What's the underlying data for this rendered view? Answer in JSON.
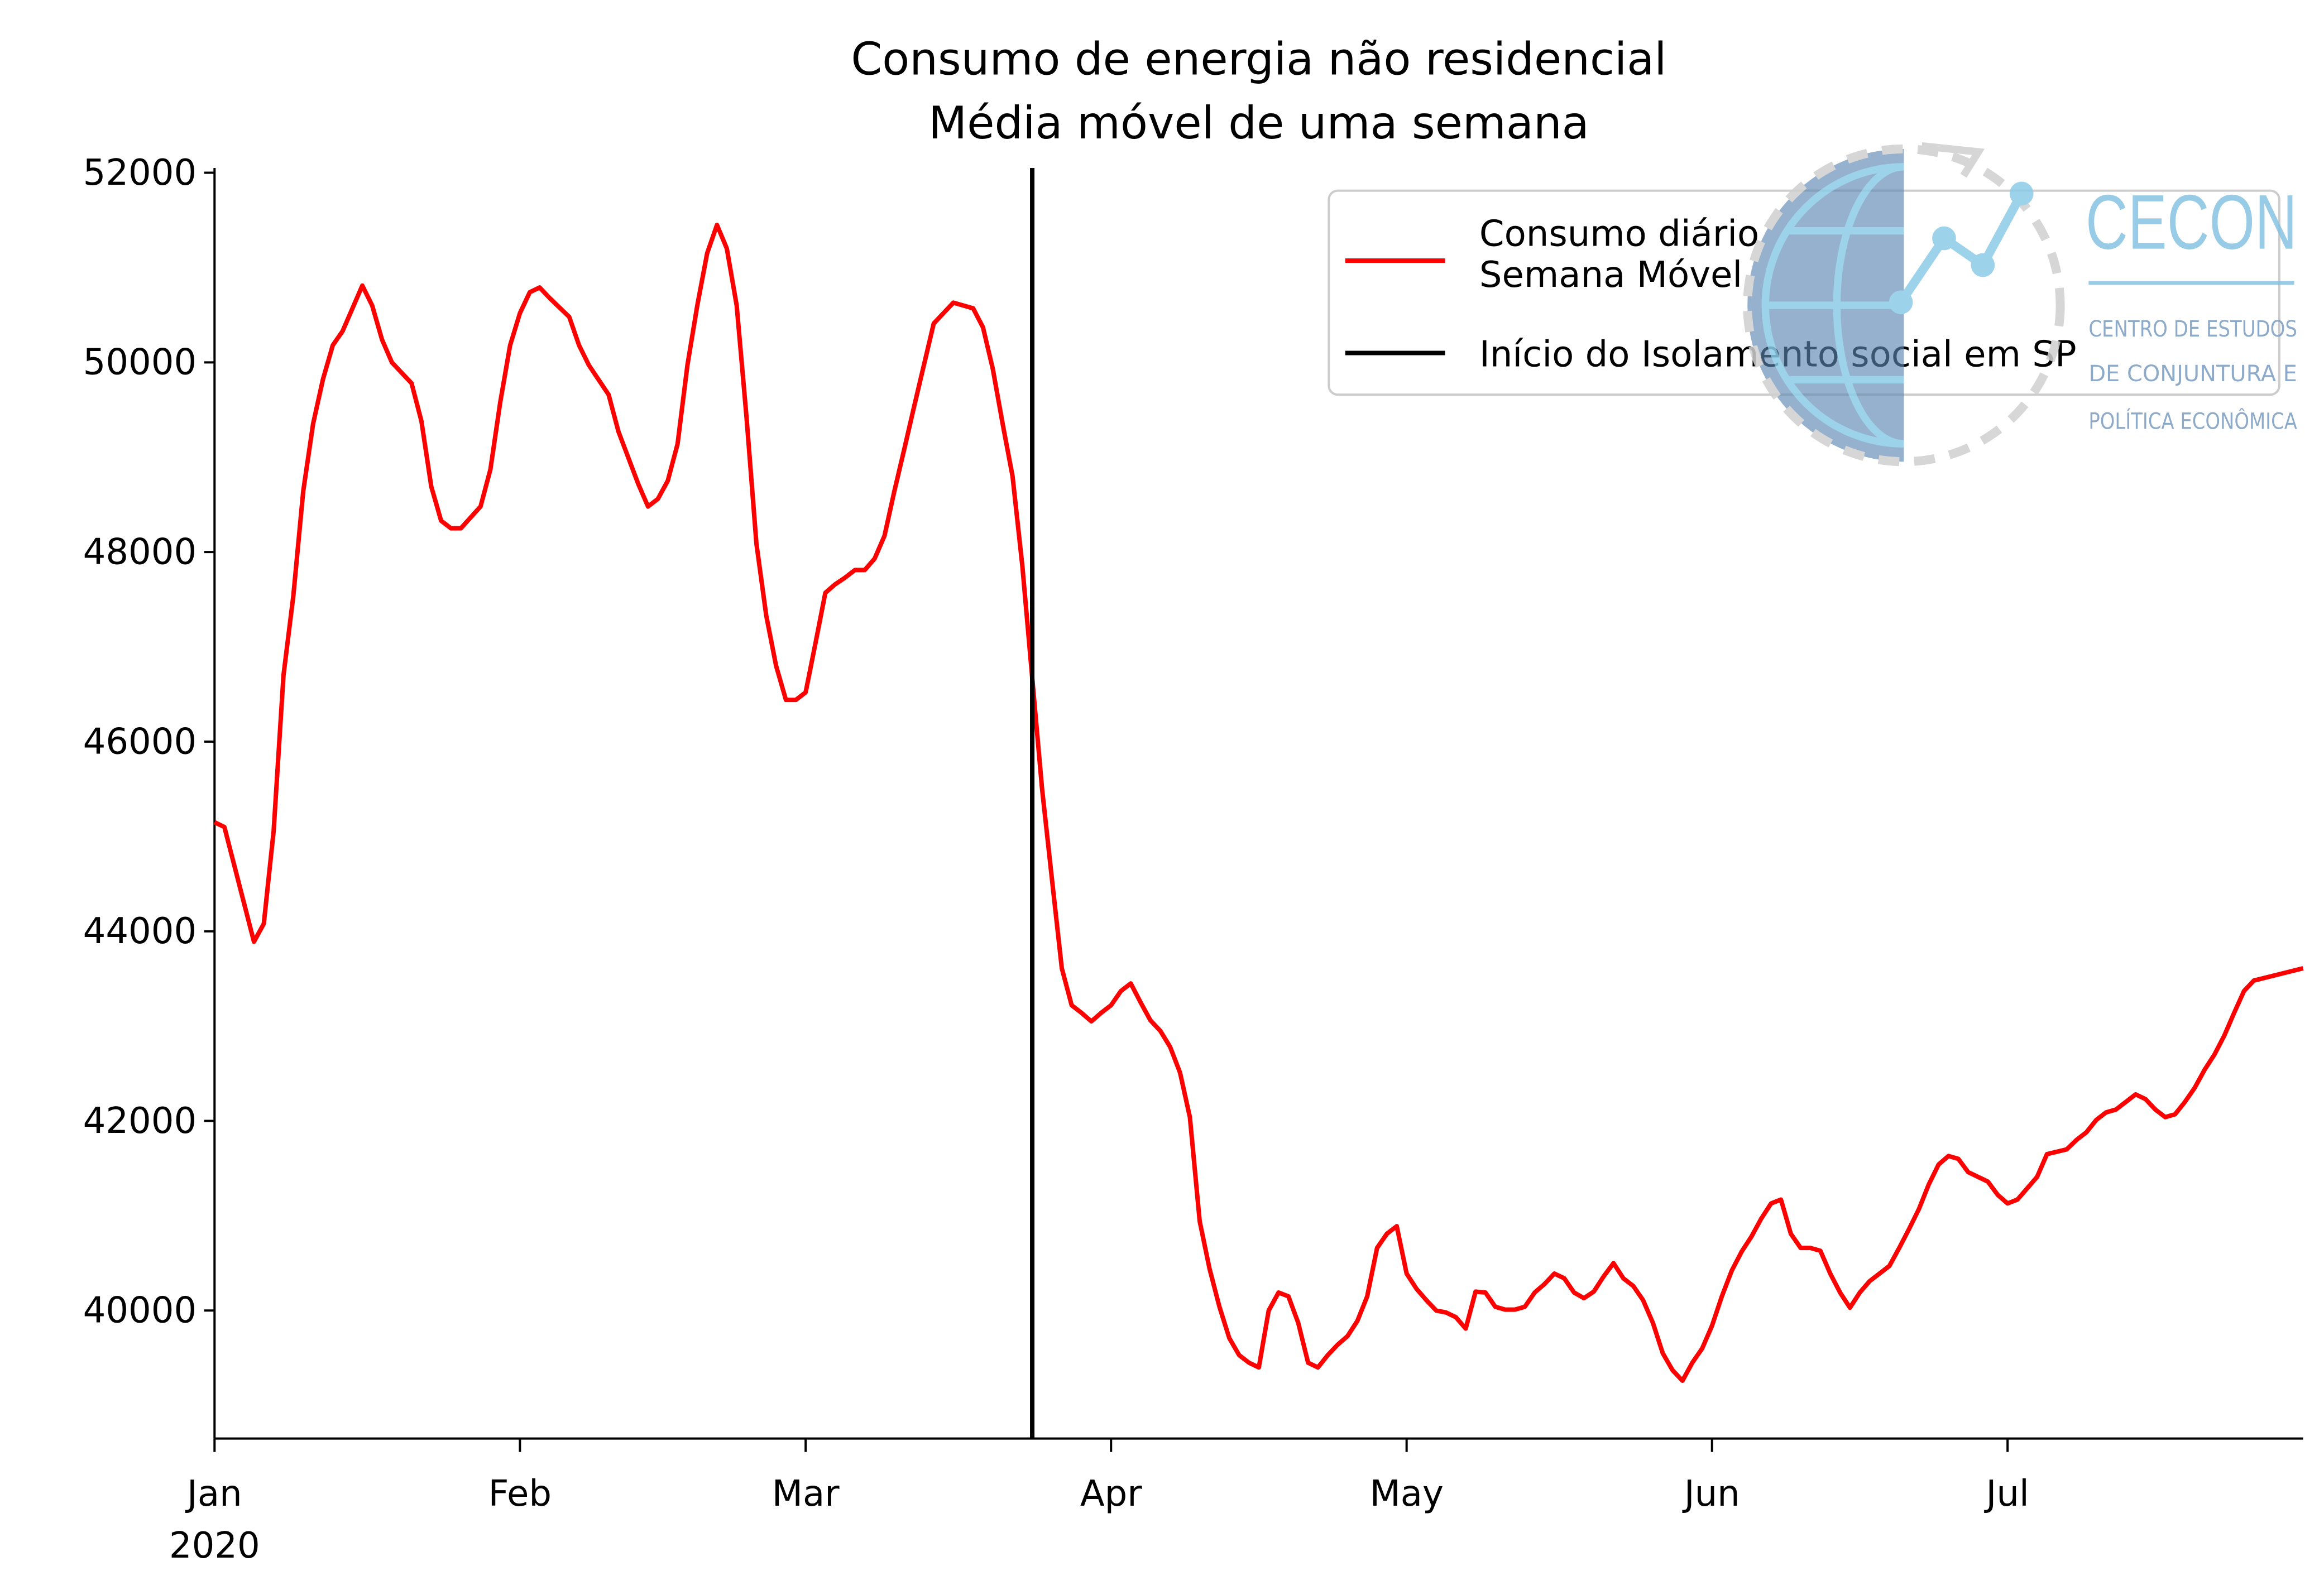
{
  "chart_data": {
    "type": "line",
    "title": "Consumo de energia não residencial",
    "subtitle": "Média móvel de uma semana",
    "xlim": [
      0,
      212
    ],
    "xticks": [
      {
        "value": 0,
        "label": "Jan"
      },
      {
        "value": 31,
        "label": "Feb"
      },
      {
        "value": 60,
        "label": "Mar"
      },
      {
        "value": 91,
        "label": "Apr"
      },
      {
        "value": 121,
        "label": "May"
      },
      {
        "value": 152,
        "label": "Jun"
      },
      {
        "value": 182,
        "label": "Jul"
      }
    ],
    "year_label": "2020",
    "ylim": [
      38650,
      52050
    ],
    "yticks": [
      40000,
      42000,
      44000,
      46000,
      48000,
      50000,
      52000
    ],
    "x": [
      0,
      1,
      4,
      5,
      6,
      7,
      8,
      9,
      10,
      11,
      12,
      13,
      15,
      16,
      17,
      18,
      20,
      21,
      22,
      23,
      24,
      25,
      27,
      28,
      29,
      30,
      31,
      32,
      33,
      34,
      36,
      37,
      38,
      40,
      41,
      43,
      44,
      45,
      46,
      47,
      48,
      49,
      50,
      51,
      52,
      53,
      54,
      55,
      56,
      57,
      58,
      59,
      60,
      61,
      62,
      63,
      64,
      65,
      66,
      67,
      68,
      69,
      70,
      71,
      72,
      73,
      75,
      77,
      78,
      79,
      80,
      81,
      82,
      83,
      84,
      85,
      86,
      87,
      88,
      89,
      90,
      91,
      92,
      93,
      94,
      95,
      96,
      97,
      98,
      99,
      100,
      101,
      102,
      103,
      104,
      105,
      106,
      107,
      108,
      109,
      110,
      111,
      112,
      113,
      114,
      115,
      116,
      117,
      118,
      119,
      120,
      121,
      122,
      123,
      124,
      125,
      126,
      127,
      128,
      129,
      130,
      131,
      132,
      133,
      134,
      135,
      136,
      137,
      138,
      139,
      140,
      141,
      142,
      143,
      144,
      145,
      146,
      147,
      148,
      149,
      150,
      151,
      152,
      153,
      154,
      155,
      156,
      157,
      158,
      159,
      160,
      161,
      162,
      163,
      164,
      165,
      166,
      167,
      168,
      169,
      170,
      171,
      172,
      173,
      174,
      175,
      176,
      177,
      178,
      179,
      180,
      181,
      182,
      183,
      185,
      186,
      188,
      189,
      190,
      191,
      192,
      193,
      194,
      195,
      196,
      197,
      198,
      199,
      200,
      201,
      202,
      203,
      204,
      205,
      206,
      207,
      212
    ],
    "series": [
      {
        "name": "Consumo diário\nSemana Móvel",
        "color": "#ff0000",
        "values": [
          45150,
          45100,
          43890,
          44080,
          45060,
          46700,
          47540,
          48640,
          49350,
          49820,
          50180,
          50330,
          50810,
          50600,
          50240,
          50000,
          49780,
          49380,
          48690,
          48330,
          48250,
          48250,
          48480,
          48870,
          49580,
          50180,
          50520,
          50740,
          50790,
          50680,
          50480,
          50180,
          49970,
          49660,
          49270,
          48720,
          48480,
          48560,
          48750,
          49140,
          49970,
          50600,
          51150,
          51450,
          51200,
          50600,
          49420,
          48090,
          47330,
          46800,
          46440,
          46440,
          46520,
          47040,
          47570,
          47660,
          47730,
          47810,
          47810,
          47930,
          48170,
          48640,
          49080,
          49530,
          49970,
          50410,
          50630,
          50570,
          50370,
          49930,
          49350,
          48800,
          47850,
          46670,
          45500,
          44550,
          43610,
          43220,
          43140,
          43050,
          43140,
          43220,
          43370,
          43450,
          43250,
          43060,
          42950,
          42780,
          42510,
          42040,
          40940,
          40440,
          40040,
          39710,
          39530,
          39450,
          39400,
          40000,
          40190,
          40150,
          39870,
          39450,
          39400,
          39530,
          39640,
          39730,
          39890,
          40150,
          40660,
          40810,
          40890,
          40390,
          40230,
          40110,
          40000,
          39980,
          39930,
          39810,
          40200,
          40190,
          40040,
          40010,
          40010,
          40040,
          40190,
          40280,
          40390,
          40340,
          40190,
          40130,
          40200,
          40360,
          40500,
          40340,
          40260,
          40110,
          39870,
          39550,
          39370,
          39260,
          39450,
          39600,
          39840,
          40150,
          40420,
          40620,
          40780,
          40970,
          41130,
          41170,
          40810,
          40660,
          40660,
          40630,
          40390,
          40190,
          40030,
          40190,
          40310,
          40390,
          40470,
          40660,
          40860,
          41070,
          41330,
          41540,
          41630,
          41600,
          41460,
          41410,
          41360,
          41220,
          41130,
          41170,
          41410,
          41650,
          41700,
          41800,
          41880,
          42010,
          42090,
          42120,
          42200,
          42280,
          42230,
          42120,
          42040,
          42070,
          42200,
          42350,
          42540,
          42700,
          42900,
          43140,
          43370,
          43480,
          43610
        ]
      }
    ],
    "vline": {
      "name": "Início do Isolamento social em SP",
      "color": "#000000",
      "x": 83
    },
    "legend": "upper right",
    "logo": {
      "name": "CECON",
      "lines": [
        "CENTRO DE ESTUDOS",
        "DE CONJUNTURA E",
        "POLÍTICA ECONÔMICA"
      ]
    }
  }
}
